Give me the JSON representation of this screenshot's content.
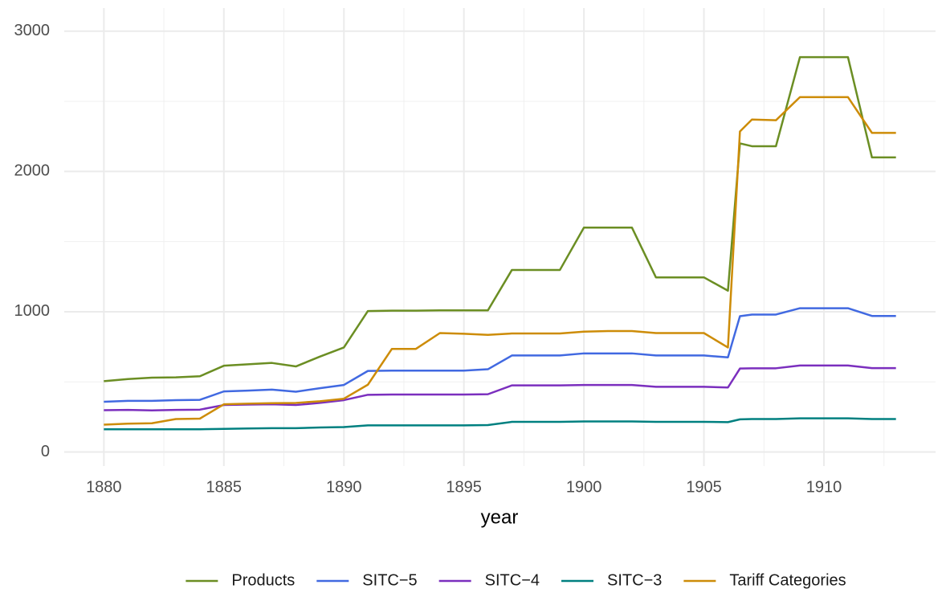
{
  "chart_data": {
    "type": "line",
    "x_label": "year",
    "x": [
      1880,
      1881,
      1882,
      1883,
      1884,
      1885,
      1886,
      1887,
      1888,
      1889,
      1890,
      1891,
      1892,
      1893,
      1894,
      1895,
      1896,
      1897,
      1898,
      1899,
      1900,
      1901,
      1902,
      1903,
      1904,
      1905,
      1906,
      1906.5,
      1907,
      1908,
      1909,
      1910,
      1911,
      1912,
      1913
    ],
    "series": [
      {
        "name": "Products",
        "color": "#6b8e23",
        "values": [
          505,
          520,
          530,
          532,
          540,
          615,
          625,
          635,
          610,
          680,
          745,
          1005,
          1008,
          1008,
          1010,
          1010,
          1010,
          1298,
          1298,
          1298,
          1600,
          1600,
          1600,
          1245,
          1245,
          1245,
          1150,
          2200,
          2180,
          2180,
          2815,
          2815,
          2815,
          2100,
          2100
        ]
      },
      {
        "name": "SITC−5",
        "color": "#4169e1",
        "values": [
          358,
          365,
          365,
          370,
          372,
          432,
          438,
          445,
          430,
          455,
          478,
          578,
          580,
          580,
          580,
          580,
          590,
          688,
          688,
          688,
          703,
          703,
          703,
          688,
          688,
          688,
          675,
          968,
          980,
          980,
          1025,
          1025,
          1025,
          970,
          970
        ]
      },
      {
        "name": "SITC−4",
        "color": "#7b2fbe",
        "values": [
          298,
          300,
          297,
          300,
          302,
          335,
          338,
          340,
          335,
          350,
          370,
          408,
          410,
          410,
          410,
          410,
          412,
          475,
          475,
          475,
          478,
          478,
          478,
          465,
          465,
          465,
          460,
          595,
          597,
          597,
          617,
          617,
          617,
          598,
          598
        ]
      },
      {
        "name": "SITC−3",
        "color": "#008080",
        "values": [
          162,
          162,
          162,
          162,
          162,
          165,
          168,
          170,
          170,
          175,
          178,
          190,
          190,
          190,
          190,
          190,
          192,
          215,
          215,
          215,
          218,
          218,
          218,
          215,
          215,
          215,
          213,
          233,
          235,
          235,
          240,
          240,
          240,
          235,
          235
        ]
      },
      {
        "name": "Tariff Categories",
        "color": "#cd8c08",
        "values": [
          195,
          202,
          205,
          235,
          238,
          340,
          345,
          348,
          350,
          362,
          380,
          480,
          735,
          735,
          848,
          843,
          835,
          845,
          845,
          845,
          858,
          862,
          862,
          848,
          848,
          848,
          745,
          2285,
          2370,
          2365,
          2530,
          2530,
          2530,
          2275,
          2275
        ]
      }
    ],
    "xlim": [
      1878.35,
      1914.65
    ],
    "ylim": [
      -100,
      3165
    ],
    "xticks": [
      1880,
      1885,
      1890,
      1895,
      1900,
      1905,
      1910
    ],
    "yticks": [
      0,
      1000,
      2000,
      3000
    ],
    "grid": true,
    "legend": "bottom"
  }
}
